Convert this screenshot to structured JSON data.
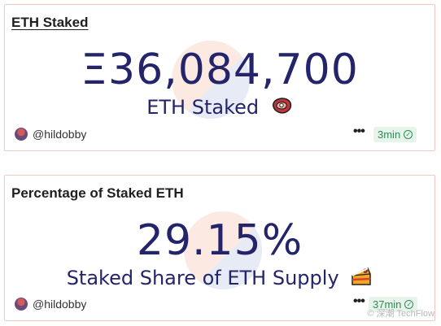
{
  "cards": [
    {
      "title": "ETH Staked",
      "value": "Ξ36,084,700",
      "subtitle": "ETH Staked",
      "subtitle_emoji": "meat-icon",
      "author": "@hildobby",
      "time": "3min"
    },
    {
      "title": "Percentage of Staked ETH",
      "value": "29.15%",
      "subtitle": "Staked Share of ETH Supply",
      "subtitle_emoji": "cake-icon",
      "author": "@hildobby",
      "time": "37min"
    }
  ],
  "watermark": "© 深潮 TechFlow",
  "colors": {
    "value": "#24246b",
    "badge_bg": "#e6f4ea",
    "badge_fg": "#2e8b57",
    "card_border": "#f2c9c0"
  }
}
